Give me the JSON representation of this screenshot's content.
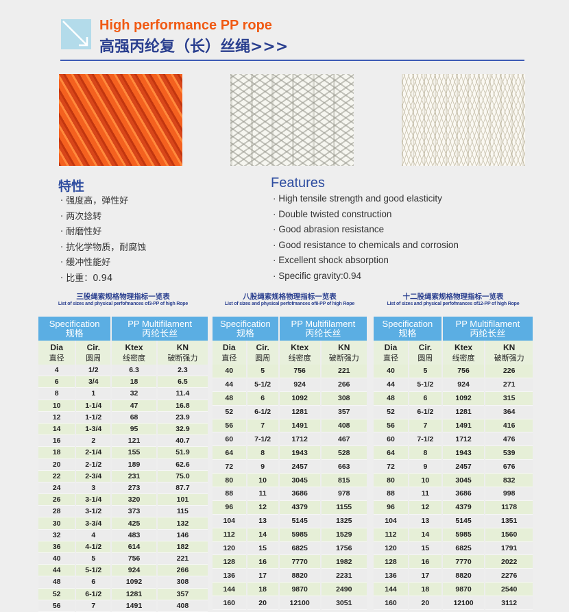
{
  "header": {
    "title_en": "High performance PP rope",
    "title_cn": "高强丙纶复（长）丝绳>>>",
    "icon": "arrow-down-right-icon"
  },
  "features": {
    "heading_cn": "特性",
    "items_cn": [
      "强度高，弹性好",
      "两次捻转",
      "耐磨性好",
      "抗化学物质，耐腐蚀",
      "缓冲性能好",
      "比重：0.94"
    ],
    "heading_en": "Features",
    "items_en": [
      "High tensile strength and good elasticity",
      "Double twisted construction",
      "Good abrasion resistance",
      "Good resistance to chemicals and corrosion",
      "Excellent shock absorption",
      "Specific gravity:0.94"
    ]
  },
  "table_header": {
    "spec": "Specification",
    "spec_cn": "规格",
    "material": "PP Multifilament",
    "material_cn": "丙纶长丝",
    "cols": [
      {
        "en": "Dia",
        "cn": "直径"
      },
      {
        "en": "Cir.",
        "cn": "圆周"
      },
      {
        "en": "Ktex",
        "cn": "线密度"
      },
      {
        "en": "KN",
        "cn": "破断强力"
      }
    ]
  },
  "colors": {
    "accent_orange": "#f05a14",
    "navy": "#2a3f8f",
    "header_blue": "#5baee3",
    "row_green": "#e6efd7",
    "row_grey": "#ececec"
  },
  "tables": [
    {
      "caption_cn": "三股绳索规格物理指标一览表",
      "caption_en": "List of sizes and physical perfofmances of3-PP of high Rope",
      "rows": [
        [
          "4",
          "1/2",
          "6.3",
          "2.3"
        ],
        [
          "6",
          "3/4",
          "18",
          "6.5"
        ],
        [
          "8",
          "1",
          "32",
          "11.4"
        ],
        [
          "10",
          "1-1/4",
          "47",
          "16.8"
        ],
        [
          "12",
          "1-1/2",
          "68",
          "23.9"
        ],
        [
          "14",
          "1-3/4",
          "95",
          "32.9"
        ],
        [
          "16",
          "2",
          "121",
          "40.7"
        ],
        [
          "18",
          "2-1/4",
          "155",
          "51.9"
        ],
        [
          "20",
          "2-1/2",
          "189",
          "62.6"
        ],
        [
          "22",
          "2-3/4",
          "231",
          "75.0"
        ],
        [
          "24",
          "3",
          "273",
          "87.7"
        ],
        [
          "26",
          "3-1/4",
          "320",
          "101"
        ],
        [
          "28",
          "3-1/2",
          "373",
          "115"
        ],
        [
          "30",
          "3-3/4",
          "425",
          "132"
        ],
        [
          "32",
          "4",
          "483",
          "146"
        ],
        [
          "36",
          "4-1/2",
          "614",
          "182"
        ],
        [
          "40",
          "5",
          "756",
          "221"
        ],
        [
          "44",
          "5-1/2",
          "924",
          "266"
        ],
        [
          "48",
          "6",
          "1092",
          "308"
        ],
        [
          "52",
          "6-1/2",
          "1281",
          "357"
        ],
        [
          "56",
          "7",
          "1491",
          "408"
        ]
      ]
    },
    {
      "caption_cn": "八股绳索规格物理指标一览表",
      "caption_en": "List of sizes and physical perfofmances of8-PP of high Rope",
      "rows": [
        [
          "40",
          "5",
          "756",
          "221"
        ],
        [
          "44",
          "5-1/2",
          "924",
          "266"
        ],
        [
          "48",
          "6",
          "1092",
          "308"
        ],
        [
          "52",
          "6-1/2",
          "1281",
          "357"
        ],
        [
          "56",
          "7",
          "1491",
          "408"
        ],
        [
          "60",
          "7-1/2",
          "1712",
          "467"
        ],
        [
          "64",
          "8",
          "1943",
          "528"
        ],
        [
          "72",
          "9",
          "2457",
          "663"
        ],
        [
          "80",
          "10",
          "3045",
          "815"
        ],
        [
          "88",
          "11",
          "3686",
          "978"
        ],
        [
          "96",
          "12",
          "4379",
          "1155"
        ],
        [
          "104",
          "13",
          "5145",
          "1325"
        ],
        [
          "112",
          "14",
          "5985",
          "1529"
        ],
        [
          "120",
          "15",
          "6825",
          "1756"
        ],
        [
          "128",
          "16",
          "7770",
          "1982"
        ],
        [
          "136",
          "17",
          "8820",
          "2231"
        ],
        [
          "144",
          "18",
          "9870",
          "2490"
        ],
        [
          "160",
          "20",
          "12100",
          "3051"
        ]
      ]
    },
    {
      "caption_cn": "十二股绳索规格物理指标一览表",
      "caption_en": "List of sizes and physical perfofmances of12-PP of high Rope",
      "rows": [
        [
          "40",
          "5",
          "756",
          "226"
        ],
        [
          "44",
          "5-1/2",
          "924",
          "271"
        ],
        [
          "48",
          "6",
          "1092",
          "315"
        ],
        [
          "52",
          "6-1/2",
          "1281",
          "364"
        ],
        [
          "56",
          "7",
          "1491",
          "416"
        ],
        [
          "60",
          "7-1/2",
          "1712",
          "476"
        ],
        [
          "64",
          "8",
          "1943",
          "539"
        ],
        [
          "72",
          "9",
          "2457",
          "676"
        ],
        [
          "80",
          "10",
          "3045",
          "832"
        ],
        [
          "88",
          "11",
          "3686",
          "998"
        ],
        [
          "96",
          "12",
          "4379",
          "1178"
        ],
        [
          "104",
          "13",
          "5145",
          "1351"
        ],
        [
          "112",
          "14",
          "5985",
          "1560"
        ],
        [
          "120",
          "15",
          "6825",
          "1791"
        ],
        [
          "128",
          "16",
          "7770",
          "2022"
        ],
        [
          "136",
          "17",
          "8820",
          "2276"
        ],
        [
          "144",
          "18",
          "9870",
          "2540"
        ],
        [
          "160",
          "20",
          "12100",
          "3112"
        ]
      ]
    }
  ]
}
